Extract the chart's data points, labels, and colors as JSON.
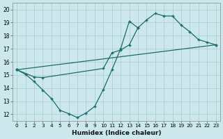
{
  "xlabel": "Humidex (Indice chaleur)",
  "bg_color": "#cce8ec",
  "grid_color": "#aed0d4",
  "line_color": "#1a6b6b",
  "xlim": [
    -0.5,
    23.5
  ],
  "ylim": [
    11.5,
    20.5
  ],
  "xticks": [
    0,
    1,
    2,
    3,
    4,
    5,
    6,
    7,
    8,
    9,
    10,
    11,
    12,
    13,
    14,
    15,
    16,
    17,
    18,
    19,
    20,
    21,
    22,
    23
  ],
  "yticks": [
    12,
    13,
    14,
    15,
    16,
    17,
    18,
    19,
    20
  ],
  "line1_x": [
    0,
    1,
    2,
    3,
    4,
    5,
    6,
    7,
    8,
    9,
    10,
    11,
    12,
    13,
    14
  ],
  "line1_y": [
    15.4,
    15.05,
    14.5,
    13.85,
    13.2,
    12.3,
    12.05,
    11.75,
    12.1,
    12.6,
    13.9,
    15.4,
    17.0,
    19.1,
    18.6
  ],
  "line2_x": [
    0,
    2,
    3,
    10,
    11,
    12,
    13,
    14,
    15,
    16,
    17,
    18,
    19,
    20,
    21,
    22,
    23
  ],
  "line2_y": [
    15.4,
    14.85,
    14.8,
    15.5,
    16.7,
    16.9,
    17.3,
    18.6,
    19.2,
    19.7,
    19.5,
    19.5,
    18.8,
    18.3,
    17.7,
    17.5,
    17.3
  ],
  "line3_x": [
    0,
    23
  ],
  "line3_y": [
    15.4,
    17.3
  ]
}
